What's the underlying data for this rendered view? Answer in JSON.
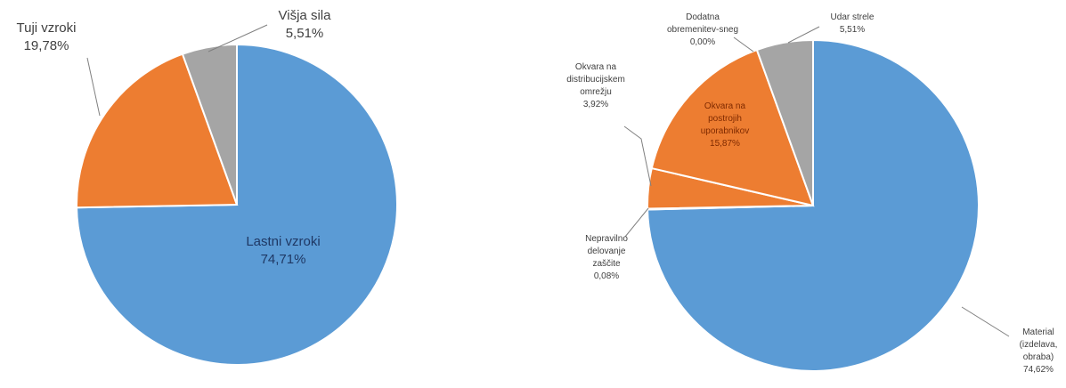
{
  "chart_data": [
    {
      "type": "pie",
      "slices": [
        {
          "label": "Lastni vzroki",
          "value_label": "74,71%",
          "value": 74.71,
          "color": "#5b9bd5",
          "label_lines": [
            "Lastni vzroki",
            "74,71%"
          ]
        },
        {
          "label": "Tuji vzroki",
          "value_label": "19,78%",
          "value": 19.78,
          "color": "#ed7d31",
          "label_lines": [
            "Tuji vzroki",
            "19,78%"
          ]
        },
        {
          "label": "Višja sila",
          "value_label": "5,51%",
          "value": 5.51,
          "color": "#a5a5a5",
          "label_lines": [
            "Višja sila",
            "5,51%"
          ]
        }
      ]
    },
    {
      "type": "pie",
      "slices": [
        {
          "label": "Material (izdelava, obraba)",
          "value_label": "74,62%",
          "value": 74.62,
          "color": "#5b9bd5",
          "label_lines": [
            "Material",
            "(izdelava,",
            "obraba)",
            "74,62%"
          ]
        },
        {
          "label": "Nepravilno delovanje zaščite",
          "value_label": "0,08%",
          "value": 0.08,
          "color": "#5b9bd5",
          "label_lines": [
            "Nepravilno",
            "delovanje",
            "zaščite",
            "0,08%"
          ]
        },
        {
          "label": "Okvara na distribucijskem omrežju",
          "value_label": "3,92%",
          "value": 3.92,
          "color": "#ed7d31",
          "label_lines": [
            "Okvara na",
            "distribucijskem",
            "omrežju",
            "3,92%"
          ]
        },
        {
          "label": "Okvara na postrojih uporabnikov",
          "value_label": "15,87%",
          "value": 15.87,
          "color": "#ed7d31",
          "label_lines": [
            "Okvara na",
            "postrojih",
            "uporabnikov",
            "15,87%"
          ]
        },
        {
          "label": "Dodatna obremenitev-sneg",
          "value_label": "0,00%",
          "value": 0.0,
          "color": "#a5a5a5",
          "label_lines": [
            "Dodatna",
            "obremenitev-sneg",
            "0,00%"
          ]
        },
        {
          "label": "Udar strele",
          "value_label": "5,51%",
          "value": 5.51,
          "color": "#a5a5a5",
          "label_lines": [
            "Udar strele",
            "5,51%"
          ]
        }
      ]
    }
  ]
}
